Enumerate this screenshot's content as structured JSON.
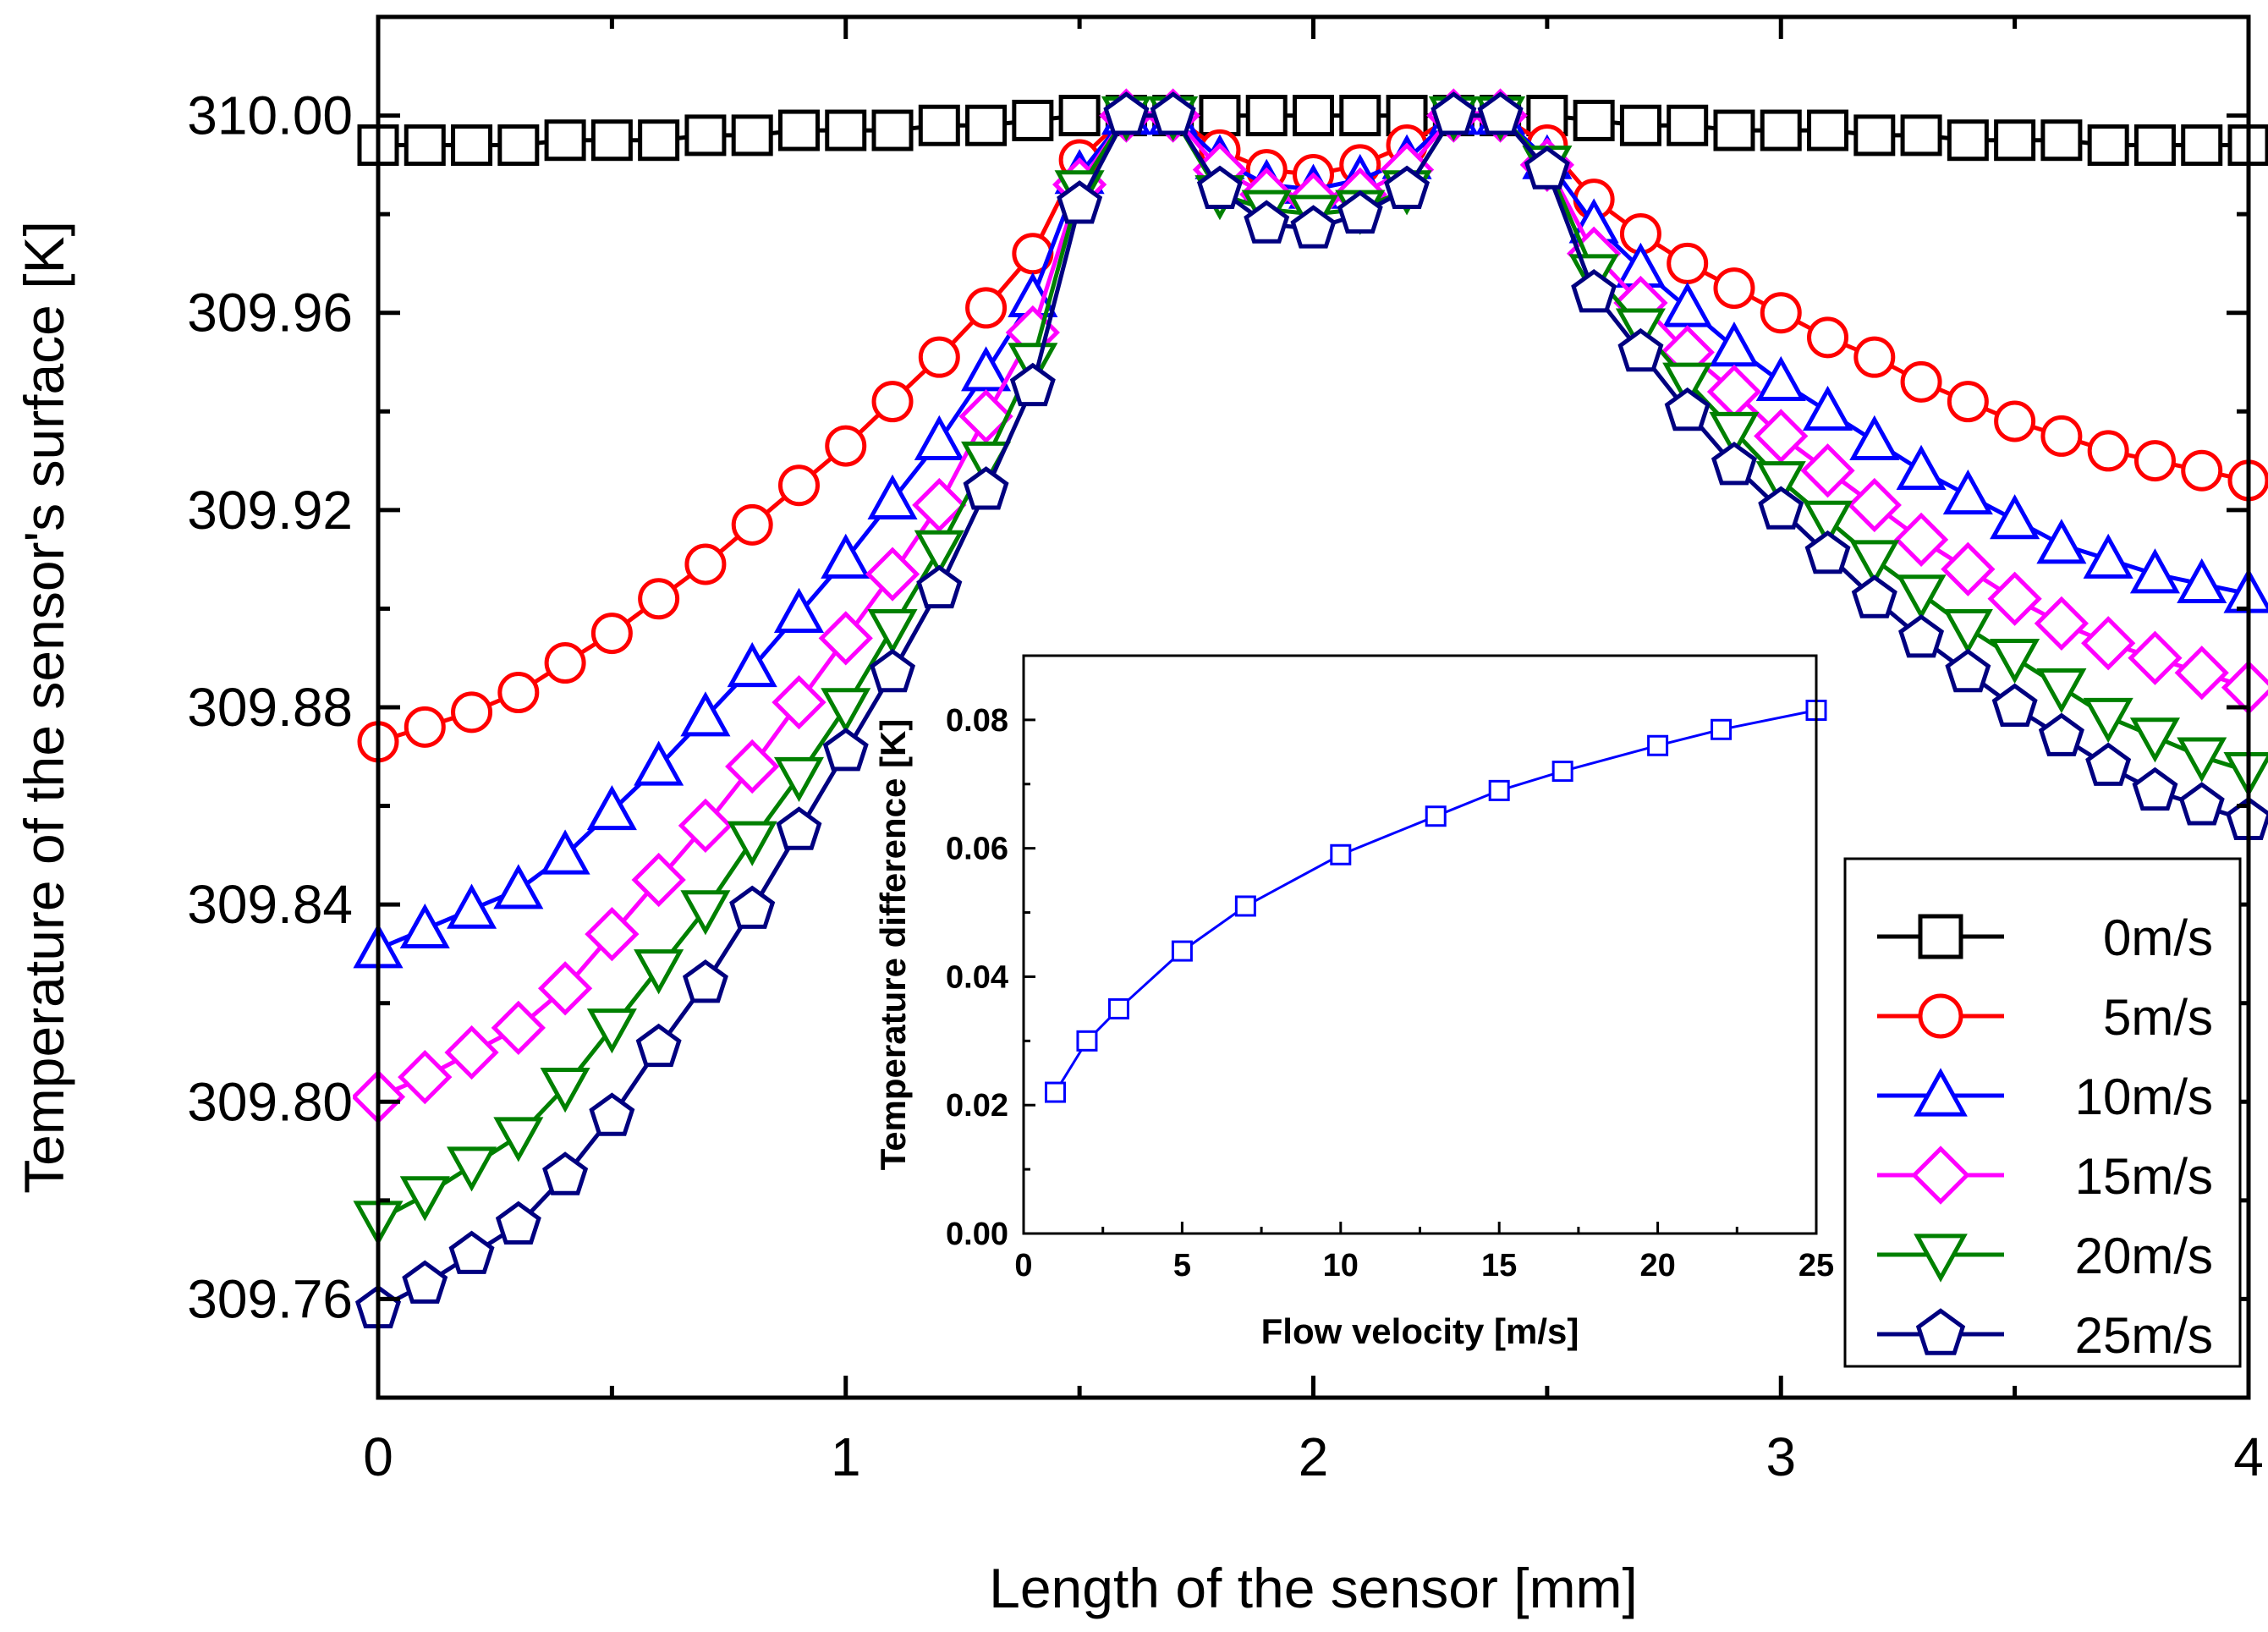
{
  "chart_data": [
    {
      "type": "line",
      "title": "",
      "xlabel": "Length of the sensor [mm]",
      "ylabel": "Temperature of the sensor's surface [K]",
      "xlim": [
        0,
        4
      ],
      "ylim": [
        309.74,
        310.02
      ],
      "xticks": [
        0,
        1,
        2,
        3,
        4
      ],
      "xtick_labels": [
        "0",
        "1",
        "2",
        "3",
        "4"
      ],
      "yticks": [
        309.76,
        309.8,
        309.84,
        309.88,
        309.92,
        309.96,
        310.0
      ],
      "ytick_labels": [
        "309.76",
        "309.80",
        "309.84",
        "309.88",
        "309.92",
        "309.96",
        "310.00"
      ],
      "legend_position": "bottom-right",
      "x": [
        0,
        0.1,
        0.2,
        0.3,
        0.4,
        0.5,
        0.6,
        0.7,
        0.8,
        0.9,
        1.0,
        1.1,
        1.2,
        1.3,
        1.4,
        1.5,
        1.6,
        1.7,
        1.8,
        1.9,
        2.0,
        2.1,
        2.2,
        2.3,
        2.4,
        2.5,
        2.6,
        2.7,
        2.8,
        2.9,
        3.0,
        3.1,
        3.2,
        3.3,
        3.4,
        3.5,
        3.6,
        3.7,
        3.8,
        3.9,
        4.0
      ],
      "series": [
        {
          "name": "0m/s",
          "color": "#000000",
          "marker": "square",
          "values": [
            309.994,
            309.994,
            309.994,
            309.994,
            309.995,
            309.995,
            309.995,
            309.996,
            309.996,
            309.997,
            309.997,
            309.997,
            309.998,
            309.998,
            309.999,
            310.0,
            310.0,
            310.0,
            310.0,
            310.0,
            310.0,
            310.0,
            310.0,
            310.0,
            310.0,
            310.0,
            309.999,
            309.998,
            309.998,
            309.997,
            309.997,
            309.997,
            309.996,
            309.996,
            309.995,
            309.995,
            309.995,
            309.994,
            309.994,
            309.994,
            309.994
          ]
        },
        {
          "name": "5m/s",
          "color": "#ff0000",
          "marker": "circle",
          "values": [
            309.873,
            309.876,
            309.879,
            309.883,
            309.889,
            309.895,
            309.902,
            309.909,
            309.917,
            309.925,
            309.933,
            309.942,
            309.951,
            309.961,
            309.972,
            309.991,
            310.0,
            310.0,
            309.993,
            309.989,
            309.988,
            309.99,
            309.994,
            310.0,
            310.0,
            309.994,
            309.983,
            309.976,
            309.97,
            309.965,
            309.96,
            309.955,
            309.951,
            309.946,
            309.942,
            309.938,
            309.935,
            309.932,
            309.93,
            309.928,
            309.926
          ]
        },
        {
          "name": "10m/s",
          "color": "#0000ff",
          "marker": "triangle-up",
          "values": [
            309.831,
            309.835,
            309.839,
            309.843,
            309.85,
            309.859,
            309.868,
            309.878,
            309.888,
            309.899,
            309.91,
            309.922,
            309.934,
            309.948,
            309.963,
            309.988,
            310.0,
            310.0,
            309.991,
            309.986,
            309.985,
            309.987,
            309.991,
            310.0,
            310.0,
            309.991,
            309.978,
            309.969,
            309.961,
            309.953,
            309.946,
            309.94,
            309.934,
            309.928,
            309.923,
            309.918,
            309.913,
            309.91,
            309.907,
            309.905,
            309.903
          ]
        },
        {
          "name": "15m/s",
          "color": "#ff00ff",
          "marker": "diamond",
          "values": [
            309.801,
            309.805,
            309.81,
            309.815,
            309.823,
            309.834,
            309.845,
            309.856,
            309.868,
            309.881,
            309.894,
            309.907,
            309.921,
            309.939,
            309.956,
            309.986,
            310.0,
            310.0,
            309.989,
            309.984,
            309.983,
            309.984,
            309.989,
            310.0,
            310.0,
            309.99,
            309.972,
            309.962,
            309.952,
            309.944,
            309.935,
            309.928,
            309.921,
            309.914,
            309.908,
            309.902,
            309.897,
            309.893,
            309.89,
            309.887,
            309.884
          ]
        },
        {
          "name": "20m/s",
          "color": "#008000",
          "marker": "triangle-down",
          "values": [
            309.776,
            309.781,
            309.787,
            309.793,
            309.803,
            309.815,
            309.827,
            309.839,
            309.853,
            309.866,
            309.88,
            309.896,
            309.912,
            309.93,
            309.95,
            309.985,
            310.0,
            310.0,
            309.984,
            309.981,
            309.98,
            309.981,
            309.985,
            310.0,
            310.0,
            309.99,
            309.968,
            309.957,
            309.946,
            309.936,
            309.926,
            309.918,
            309.91,
            309.903,
            309.896,
            309.89,
            309.884,
            309.878,
            309.874,
            309.87,
            309.867
          ]
        },
        {
          "name": "25m/s",
          "color": "#000080",
          "marker": "pentagon",
          "values": [
            309.758,
            309.763,
            309.769,
            309.775,
            309.785,
            309.797,
            309.811,
            309.824,
            309.839,
            309.855,
            309.871,
            309.887,
            309.904,
            309.924,
            309.945,
            309.982,
            310.0,
            310.0,
            309.985,
            309.978,
            309.977,
            309.98,
            309.985,
            310.0,
            310.0,
            309.989,
            309.964,
            309.952,
            309.94,
            309.929,
            309.92,
            309.911,
            309.902,
            309.894,
            309.887,
            309.88,
            309.874,
            309.868,
            309.863,
            309.86,
            309.857
          ]
        }
      ]
    },
    {
      "type": "line",
      "title": "",
      "xlabel": "Flow velocity [m/s]",
      "ylabel": "Temperature difference [K]",
      "xlim": [
        0,
        25
      ],
      "ylim": [
        0,
        0.09
      ],
      "xticks": [
        0,
        5,
        10,
        15,
        20,
        25
      ],
      "xtick_labels": [
        "0",
        "5",
        "10",
        "15",
        "20",
        "25"
      ],
      "yticks": [
        0,
        0.02,
        0.04,
        0.06,
        0.08
      ],
      "ytick_labels": [
        "0.00",
        "0.02",
        "0.04",
        "0.06",
        "0.08"
      ],
      "series": [
        {
          "name": "Temperature difference",
          "color": "#0000ff",
          "marker": "square",
          "x": [
            1,
            2,
            3,
            5,
            7,
            10,
            13,
            15,
            17,
            20,
            22,
            25
          ],
          "values": [
            0.022,
            0.03,
            0.035,
            0.044,
            0.051,
            0.059,
            0.065,
            0.069,
            0.072,
            0.076,
            0.0785,
            0.0815
          ]
        }
      ]
    }
  ]
}
